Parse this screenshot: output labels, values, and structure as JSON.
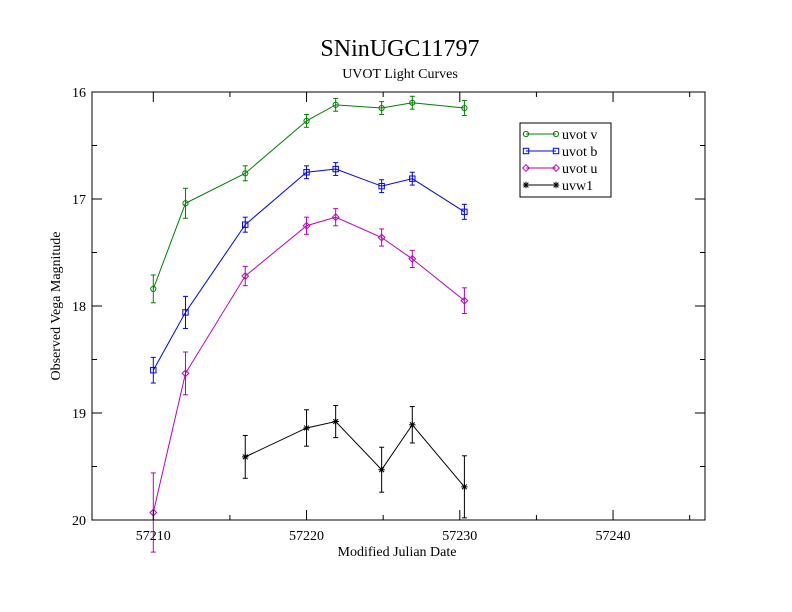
{
  "chart_data": {
    "type": "line",
    "title": "SNinUGC11797",
    "subtitle": "UVOT Light Curves",
    "xlabel": "Modified Julian Date",
    "ylabel": "Observed Vega Magnitude",
    "xlim": [
      57206,
      57246
    ],
    "ylim": [
      16,
      20
    ],
    "y_inverted": true,
    "x_ticks": [
      57210,
      57220,
      57230,
      57240
    ],
    "y_ticks": [
      16,
      17,
      18,
      19,
      20
    ],
    "x_tick_labels": [
      "57210",
      "57220",
      "57230",
      "57240"
    ],
    "y_tick_labels": [
      "16",
      "17",
      "18",
      "19",
      "20"
    ],
    "grid": false,
    "legend_position": "top-right",
    "series": [
      {
        "name": "uvot v",
        "color": "#008000",
        "marker": "circle",
        "x": [
          57210.0,
          57212.1,
          57216.0,
          57220.0,
          57221.9,
          57224.9,
          57226.9,
          57230.3
        ],
        "y": [
          17.84,
          17.04,
          16.76,
          16.27,
          16.12,
          16.15,
          16.1,
          16.15
        ],
        "err": [
          0.13,
          0.14,
          0.07,
          0.06,
          0.06,
          0.06,
          0.06,
          0.07
        ]
      },
      {
        "name": "uvot b",
        "color": "#0000ff",
        "marker": "square",
        "x": [
          57210.0,
          57212.1,
          57216.0,
          57220.0,
          57221.9,
          57224.9,
          57226.9,
          57230.3
        ],
        "y": [
          18.6,
          18.06,
          17.24,
          16.75,
          16.72,
          16.88,
          16.81,
          17.12
        ],
        "err": [
          0.12,
          0.15,
          0.07,
          0.06,
          0.06,
          0.06,
          0.06,
          0.07
        ]
      },
      {
        "name": "uvot u",
        "color": "#bb00bb",
        "marker": "diamond",
        "x": [
          57210.0,
          57212.1,
          57216.0,
          57220.0,
          57221.9,
          57224.9,
          57226.9,
          57230.3
        ],
        "y": [
          19.93,
          18.63,
          17.72,
          17.25,
          17.17,
          17.36,
          17.56,
          17.95
        ],
        "err": [
          0.37,
          0.2,
          0.09,
          0.08,
          0.08,
          0.08,
          0.08,
          0.12
        ]
      },
      {
        "name": "uvw1",
        "color": "#000000",
        "marker": "star",
        "x": [
          57216.0,
          57220.0,
          57221.9,
          57224.9,
          57226.9,
          57230.3
        ],
        "y": [
          19.41,
          19.14,
          19.08,
          19.53,
          19.11,
          19.69
        ],
        "err": [
          0.2,
          0.17,
          0.15,
          0.21,
          0.17,
          0.29
        ]
      }
    ]
  }
}
